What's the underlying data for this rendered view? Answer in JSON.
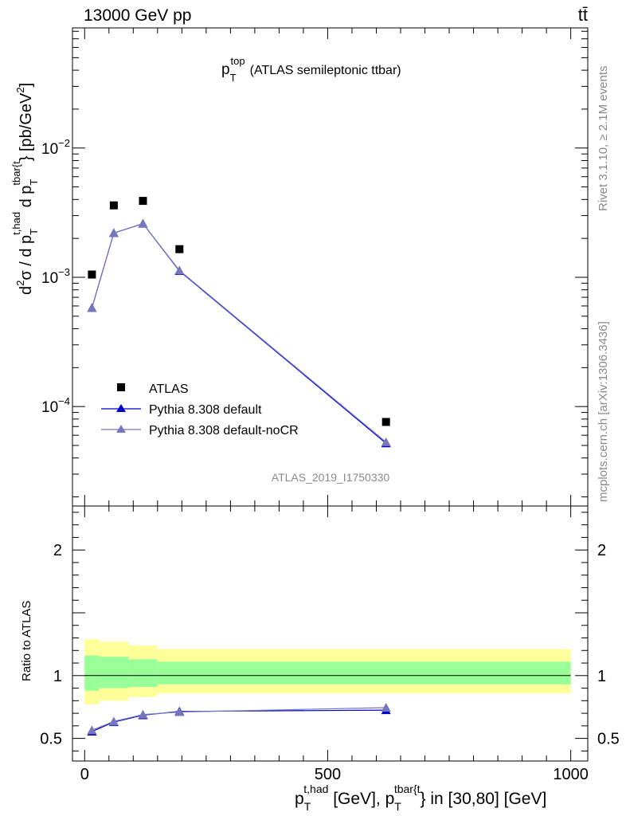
{
  "header": {
    "energy_label": "13000 GeV pp",
    "process_label": "tt̄"
  },
  "side_labels": {
    "rivet": "Rivet 3.1.10, ≥ 2.1M events",
    "mcplots": "mcplots.cern.ch [arXiv:1306.3436]"
  },
  "watermark": "ATLAS_2019_I1750330",
  "plot_title": {
    "main": "p",
    "sub": "T",
    "sup": "top",
    "rest": "(ATLAS semileptonic ttbar)"
  },
  "ylabel_main": {
    "p1": "d",
    "p1_sup": "2",
    "p2": "σ  /  d p",
    "p2_sub": "T",
    "p2_sup": "t,had",
    "p3": " d p",
    "p3_sub": "T",
    "p3_sup": "tbar{t",
    "p4": "} [pb/GeV",
    "p4_sup": "2",
    "p5": "]"
  },
  "ylabel_ratio": "Ratio to ATLAS",
  "xlabel": {
    "p1": "p",
    "p1_sub": "T",
    "p1_sup": "t,had",
    "p2": " [GeV], p",
    "p2_sub": "T",
    "p2_sup": "tbar{t",
    "p3": "} in [30,80] [GeV]"
  },
  "legend": [
    "ATLAS",
    "Pythia 8.308 default",
    "Pythia 8.308 default-noCR"
  ],
  "colors": {
    "data": "#000000",
    "default": "#0000cc",
    "nocr": "#7777bb",
    "band_inner": "#99ff99",
    "band_outer": "#ffff99"
  },
  "chart_data": {
    "type": "scatter",
    "x_scale": "linear",
    "y_scale": "log",
    "xlim": [
      -25,
      1035
    ],
    "ylim": [
      1.7e-05,
      0.085
    ],
    "y_ticks": [
      {
        "value": 0.0001,
        "base": "10",
        "exp": "−4"
      },
      {
        "value": 0.001,
        "base": "10",
        "exp": "−3"
      },
      {
        "value": 0.01,
        "base": "10",
        "exp": "−2"
      }
    ],
    "series": [
      {
        "name": "ATLAS",
        "kind": "data",
        "x": [
          15,
          60,
          120,
          195,
          620
        ],
        "y": [
          0.00105,
          0.0036,
          0.0039,
          0.00165,
          7.6e-05
        ]
      },
      {
        "name": "Pythia 8.308 default",
        "kind": "default",
        "x": [
          15,
          60,
          120,
          195,
          620
        ],
        "y": [
          0.00058,
          0.0022,
          0.0026,
          0.00112,
          5.2e-05
        ]
      },
      {
        "name": "Pythia 8.308 default-noCR",
        "kind": "nocr",
        "x": [
          15,
          60,
          120,
          195,
          620
        ],
        "y": [
          0.00058,
          0.0022,
          0.0026,
          0.00113,
          5.3e-05
        ]
      }
    ],
    "ratio": {
      "ylim": [
        0.32,
        2.35
      ],
      "y_ticks": [
        0.5,
        1,
        2
      ],
      "x_ticks": [
        0,
        500,
        1000
      ],
      "bins": [
        [
          0,
          30
        ],
        [
          30,
          90
        ],
        [
          90,
          150
        ],
        [
          150,
          1000
        ]
      ],
      "inner_band": [
        [
          0.88,
          1.16
        ],
        [
          0.9,
          1.15
        ],
        [
          0.91,
          1.13
        ],
        [
          0.93,
          1.11
        ]
      ],
      "outer_band": [
        [
          0.77,
          1.29
        ],
        [
          0.8,
          1.27
        ],
        [
          0.83,
          1.24
        ],
        [
          0.86,
          1.21
        ]
      ],
      "series": [
        {
          "name": "Pythia 8.308 default",
          "kind": "default",
          "x": [
            15,
            60,
            120,
            195,
            620
          ],
          "y": [
            0.555,
            0.63,
            0.685,
            0.715,
            0.725
          ]
        },
        {
          "name": "Pythia 8.308 default-noCR",
          "kind": "nocr",
          "x": [
            15,
            60,
            120,
            195,
            620
          ],
          "y": [
            0.565,
            0.635,
            0.69,
            0.71,
            0.745
          ]
        }
      ]
    }
  }
}
